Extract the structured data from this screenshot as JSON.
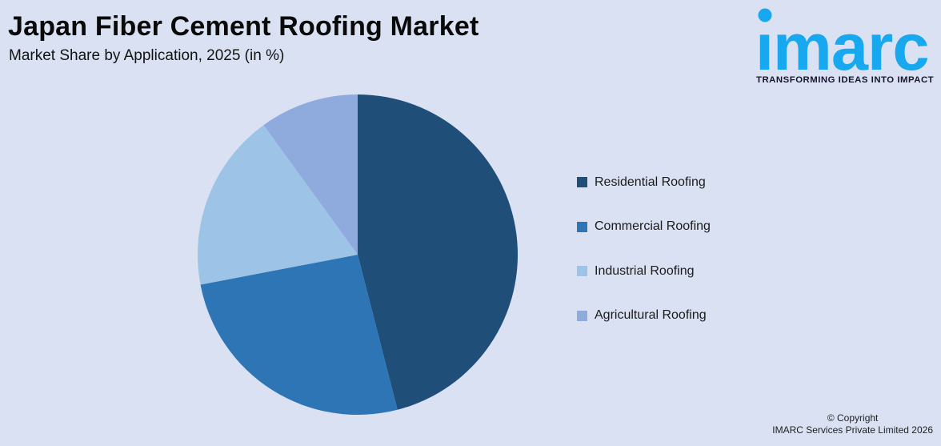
{
  "header": {
    "title": "Japan Fiber Cement Roofing Market",
    "subtitle": "Market Share by Application, 2025 (in %)"
  },
  "logo": {
    "wordmark": "imarc",
    "tagline": "TRANSFORMING IDEAS INTO IMPACT",
    "brand_blue": "#18A8F0",
    "tagline_color": "#15152E"
  },
  "chart_data": {
    "type": "pie",
    "title": "Japan Fiber Cement Roofing Market",
    "subtitle": "Market Share by Application, 2025 (in %)",
    "unit": "%",
    "categories": [
      "Residential Roofing",
      "Commercial Roofing",
      "Industrial Roofing",
      "Agricultural Roofing"
    ],
    "values": [
      46,
      26,
      18,
      10
    ],
    "colors": [
      "#1F4E79",
      "#2E75B6",
      "#9DC3E6",
      "#8FAADC"
    ],
    "start_angle_deg": 0,
    "direction": "clockwise",
    "legend_position": "right",
    "data_labels": false
  },
  "legend": {
    "items": [
      {
        "label": "Residential Roofing",
        "color": "#1F4E79"
      },
      {
        "label": "Commercial Roofing",
        "color": "#2E75B6"
      },
      {
        "label": "Industrial Roofing",
        "color": "#9DC3E6"
      },
      {
        "label": "Agricultural Roofing",
        "color": "#8FAADC"
      }
    ]
  },
  "footer": {
    "line1": "© Copyright",
    "line2": "IMARC Services Private Limited 2026"
  },
  "canvas": {
    "background": "#D9E1F2"
  }
}
